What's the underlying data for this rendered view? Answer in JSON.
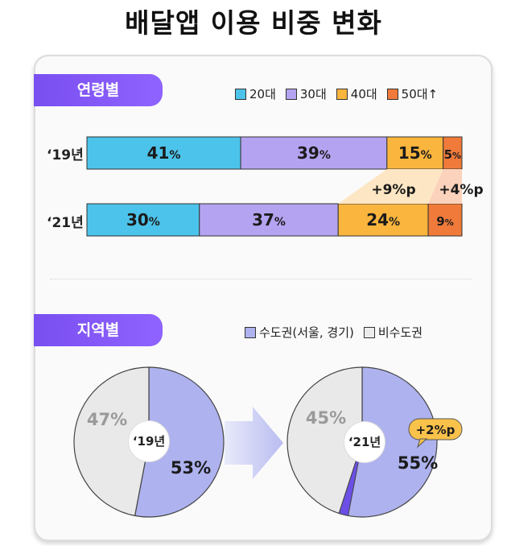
{
  "title": "배달앱 이용 비중 변화",
  "section_age": {
    "label": "연령별"
  },
  "section_region": {
    "label": "지역별"
  },
  "age_legend": [
    {
      "label": "20대",
      "color": "#4cc3ea"
    },
    {
      "label": "30대",
      "color": "#b4a3f0"
    },
    {
      "label": "40대",
      "color": "#f9b53d"
    },
    {
      "label": "50대↑",
      "color": "#f07a3a"
    }
  ],
  "region_legend": [
    {
      "label": "수도권(서울, 경기)",
      "color": "#aeb2ee"
    },
    {
      "label": "비수도권",
      "color": "#ececec"
    }
  ],
  "chart_data": [
    {
      "type": "bar",
      "orientation": "horizontal-stacked",
      "categories": [
        "‘19년",
        "‘21년"
      ],
      "series": [
        {
          "name": "20대",
          "values": [
            41,
            30
          ],
          "color": "#4cc3ea"
        },
        {
          "name": "30대",
          "values": [
            39,
            37
          ],
          "color": "#b4a3f0"
        },
        {
          "name": "40대",
          "values": [
            15,
            24
          ],
          "color": "#f9b53d"
        },
        {
          "name": "50대↑",
          "values": [
            5,
            9
          ],
          "color": "#f07a3a"
        }
      ],
      "annotations": [
        "+9%p",
        "+4%p"
      ]
    },
    {
      "type": "pie",
      "center_label": "‘19년",
      "slices": [
        {
          "name": "수도권(서울, 경기)",
          "value": 53,
          "color": "#aeb2ee"
        },
        {
          "name": "비수도권",
          "value": 47,
          "color": "#e9e9e9"
        }
      ]
    },
    {
      "type": "pie",
      "center_label": "‘21년",
      "slices": [
        {
          "name": "수도권(서울, 경기)",
          "value": 55,
          "color": "#aeb2ee"
        },
        {
          "name": "비수도권",
          "value": 45,
          "color": "#e9e9e9"
        }
      ],
      "annotation": "+2%p"
    }
  ]
}
